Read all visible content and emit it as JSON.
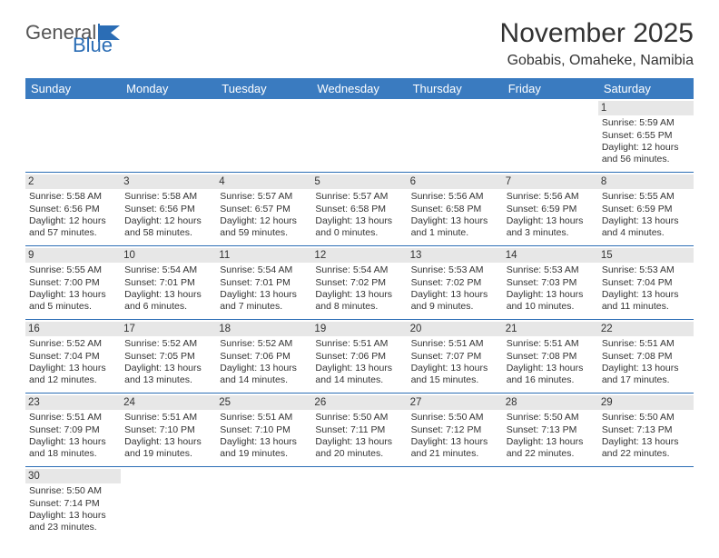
{
  "logo": {
    "part1": "General",
    "part2": "Blue"
  },
  "title": "November 2025",
  "subtitle": "Gobabis, Omaheke, Namibia",
  "day_headers": [
    "Sunday",
    "Monday",
    "Tuesday",
    "Wednesday",
    "Thursday",
    "Friday",
    "Saturday"
  ],
  "colors": {
    "header_bg": "#3a7bc0",
    "header_fg": "#ffffff",
    "cell_border": "#2b6db5",
    "daynum_bg": "#e7e7e7",
    "logo_blue": "#2b6db5"
  },
  "weeks": [
    [
      null,
      null,
      null,
      null,
      null,
      null,
      {
        "n": "1",
        "sr": "Sunrise: 5:59 AM",
        "ss": "Sunset: 6:55 PM",
        "dl": "Daylight: 12 hours and 56 minutes."
      }
    ],
    [
      {
        "n": "2",
        "sr": "Sunrise: 5:58 AM",
        "ss": "Sunset: 6:56 PM",
        "dl": "Daylight: 12 hours and 57 minutes."
      },
      {
        "n": "3",
        "sr": "Sunrise: 5:58 AM",
        "ss": "Sunset: 6:56 PM",
        "dl": "Daylight: 12 hours and 58 minutes."
      },
      {
        "n": "4",
        "sr": "Sunrise: 5:57 AM",
        "ss": "Sunset: 6:57 PM",
        "dl": "Daylight: 12 hours and 59 minutes."
      },
      {
        "n": "5",
        "sr": "Sunrise: 5:57 AM",
        "ss": "Sunset: 6:58 PM",
        "dl": "Daylight: 13 hours and 0 minutes."
      },
      {
        "n": "6",
        "sr": "Sunrise: 5:56 AM",
        "ss": "Sunset: 6:58 PM",
        "dl": "Daylight: 13 hours and 1 minute."
      },
      {
        "n": "7",
        "sr": "Sunrise: 5:56 AM",
        "ss": "Sunset: 6:59 PM",
        "dl": "Daylight: 13 hours and 3 minutes."
      },
      {
        "n": "8",
        "sr": "Sunrise: 5:55 AM",
        "ss": "Sunset: 6:59 PM",
        "dl": "Daylight: 13 hours and 4 minutes."
      }
    ],
    [
      {
        "n": "9",
        "sr": "Sunrise: 5:55 AM",
        "ss": "Sunset: 7:00 PM",
        "dl": "Daylight: 13 hours and 5 minutes."
      },
      {
        "n": "10",
        "sr": "Sunrise: 5:54 AM",
        "ss": "Sunset: 7:01 PM",
        "dl": "Daylight: 13 hours and 6 minutes."
      },
      {
        "n": "11",
        "sr": "Sunrise: 5:54 AM",
        "ss": "Sunset: 7:01 PM",
        "dl": "Daylight: 13 hours and 7 minutes."
      },
      {
        "n": "12",
        "sr": "Sunrise: 5:54 AM",
        "ss": "Sunset: 7:02 PM",
        "dl": "Daylight: 13 hours and 8 minutes."
      },
      {
        "n": "13",
        "sr": "Sunrise: 5:53 AM",
        "ss": "Sunset: 7:02 PM",
        "dl": "Daylight: 13 hours and 9 minutes."
      },
      {
        "n": "14",
        "sr": "Sunrise: 5:53 AM",
        "ss": "Sunset: 7:03 PM",
        "dl": "Daylight: 13 hours and 10 minutes."
      },
      {
        "n": "15",
        "sr": "Sunrise: 5:53 AM",
        "ss": "Sunset: 7:04 PM",
        "dl": "Daylight: 13 hours and 11 minutes."
      }
    ],
    [
      {
        "n": "16",
        "sr": "Sunrise: 5:52 AM",
        "ss": "Sunset: 7:04 PM",
        "dl": "Daylight: 13 hours and 12 minutes."
      },
      {
        "n": "17",
        "sr": "Sunrise: 5:52 AM",
        "ss": "Sunset: 7:05 PM",
        "dl": "Daylight: 13 hours and 13 minutes."
      },
      {
        "n": "18",
        "sr": "Sunrise: 5:52 AM",
        "ss": "Sunset: 7:06 PM",
        "dl": "Daylight: 13 hours and 14 minutes."
      },
      {
        "n": "19",
        "sr": "Sunrise: 5:51 AM",
        "ss": "Sunset: 7:06 PM",
        "dl": "Daylight: 13 hours and 14 minutes."
      },
      {
        "n": "20",
        "sr": "Sunrise: 5:51 AM",
        "ss": "Sunset: 7:07 PM",
        "dl": "Daylight: 13 hours and 15 minutes."
      },
      {
        "n": "21",
        "sr": "Sunrise: 5:51 AM",
        "ss": "Sunset: 7:08 PM",
        "dl": "Daylight: 13 hours and 16 minutes."
      },
      {
        "n": "22",
        "sr": "Sunrise: 5:51 AM",
        "ss": "Sunset: 7:08 PM",
        "dl": "Daylight: 13 hours and 17 minutes."
      }
    ],
    [
      {
        "n": "23",
        "sr": "Sunrise: 5:51 AM",
        "ss": "Sunset: 7:09 PM",
        "dl": "Daylight: 13 hours and 18 minutes."
      },
      {
        "n": "24",
        "sr": "Sunrise: 5:51 AM",
        "ss": "Sunset: 7:10 PM",
        "dl": "Daylight: 13 hours and 19 minutes."
      },
      {
        "n": "25",
        "sr": "Sunrise: 5:51 AM",
        "ss": "Sunset: 7:10 PM",
        "dl": "Daylight: 13 hours and 19 minutes."
      },
      {
        "n": "26",
        "sr": "Sunrise: 5:50 AM",
        "ss": "Sunset: 7:11 PM",
        "dl": "Daylight: 13 hours and 20 minutes."
      },
      {
        "n": "27",
        "sr": "Sunrise: 5:50 AM",
        "ss": "Sunset: 7:12 PM",
        "dl": "Daylight: 13 hours and 21 minutes."
      },
      {
        "n": "28",
        "sr": "Sunrise: 5:50 AM",
        "ss": "Sunset: 7:13 PM",
        "dl": "Daylight: 13 hours and 22 minutes."
      },
      {
        "n": "29",
        "sr": "Sunrise: 5:50 AM",
        "ss": "Sunset: 7:13 PM",
        "dl": "Daylight: 13 hours and 22 minutes."
      }
    ],
    [
      {
        "n": "30",
        "sr": "Sunrise: 5:50 AM",
        "ss": "Sunset: 7:14 PM",
        "dl": "Daylight: 13 hours and 23 minutes."
      },
      null,
      null,
      null,
      null,
      null,
      null
    ]
  ]
}
